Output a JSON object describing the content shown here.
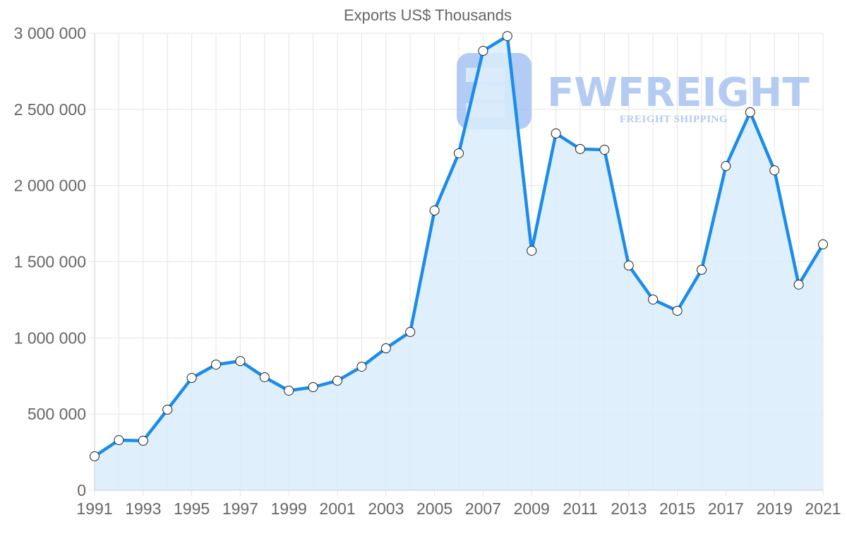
{
  "chart_data": {
    "type": "line",
    "title": "Exports US$ Thousands",
    "xlabel": "",
    "ylabel": "",
    "ylim": [
      0,
      3000000
    ],
    "yticks": [
      0,
      500000,
      1000000,
      1500000,
      2000000,
      2500000,
      3000000
    ],
    "ytick_labels": [
      "0",
      "500 000",
      "1 000 000",
      "1 500 000",
      "2 000 000",
      "2 500 000",
      "3 000 000"
    ],
    "xtick_labels": [
      "1991",
      "1993",
      "1995",
      "1997",
      "1999",
      "2001",
      "2003",
      "2005",
      "2007",
      "2009",
      "2011",
      "2013",
      "2015",
      "2017",
      "2019",
      "2021"
    ],
    "grid": true,
    "legend": null,
    "fill": true,
    "categories": [
      "1991",
      "1992",
      "1993",
      "1994",
      "1995",
      "1996",
      "1997",
      "1998",
      "1999",
      "2000",
      "2001",
      "2002",
      "2003",
      "2004",
      "2005",
      "2006",
      "2007",
      "2008",
      "2009",
      "2010",
      "2011",
      "2012",
      "2013",
      "2014",
      "2015",
      "2016",
      "2017",
      "2018",
      "2019",
      "2020",
      "2021"
    ],
    "series": [
      {
        "name": "Exports US$ Thousands",
        "values": [
          223000,
          329000,
          325000,
          529000,
          737000,
          825000,
          848000,
          742000,
          654000,
          677000,
          719000,
          811000,
          932000,
          1039000,
          1836000,
          2212000,
          2884000,
          2981000,
          1572000,
          2342000,
          2240000,
          2235000,
          1475000,
          1252000,
          1178000,
          1447000,
          2128000,
          2481000,
          2100000,
          1350000,
          1614000
        ]
      }
    ]
  },
  "colors": {
    "line": "#1a8cec",
    "fill": "#d9ecfc",
    "grid": "#e4e4e4",
    "text": "#666666",
    "point_fill": "#ffffff",
    "point_stroke": "#222222",
    "watermark": "#a7c3f1"
  },
  "watermark": {
    "brand": "FWFREIGHT",
    "tagline": "FREIGHT SHIPPING"
  }
}
